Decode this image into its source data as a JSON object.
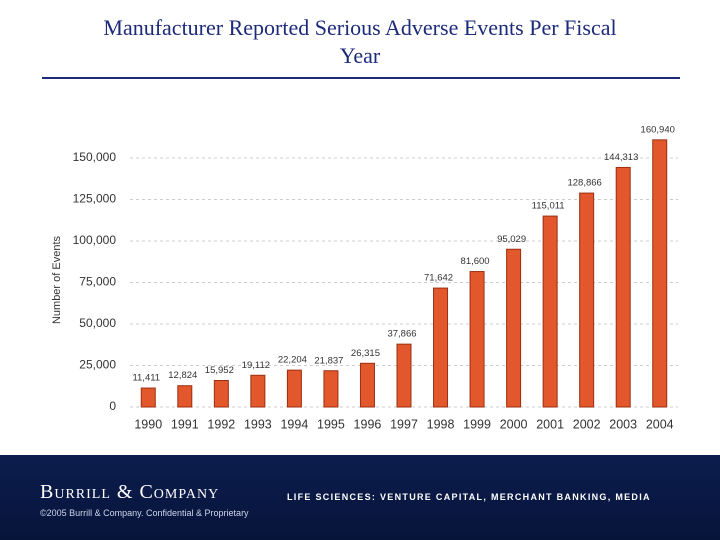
{
  "chart_data": {
    "type": "bar",
    "title": "Manufacturer Reported Serious Adverse Events Per Fiscal Year",
    "y_label": "Number of Events",
    "categories": [
      "1990",
      "1991",
      "1992",
      "1993",
      "1994",
      "1995",
      "1996",
      "1997",
      "1998",
      "1999",
      "2000",
      "2001",
      "2002",
      "2003",
      "2004"
    ],
    "values": [
      11411,
      12824,
      15952,
      19112,
      22204,
      21837,
      26315,
      37866,
      71642,
      81600,
      95029,
      115011,
      128866,
      144313,
      160940
    ],
    "value_labels": [
      "11,411",
      "12,824",
      "15,952",
      "19,112",
      "22,204",
      "21,837",
      "26,315",
      "37,866",
      "71,642",
      "81,600",
      "95,029",
      "115,011",
      "128,866",
      "144,313",
      "160,940"
    ],
    "color": "#e2572b",
    "ylim": [
      0,
      190000
    ],
    "yticks": [
      0,
      {
        "value": 25000,
        "label": "25,000"
      },
      {
        "value": 50000,
        "label": "50,000"
      },
      {
        "value": 75000,
        "label": "75,000"
      },
      {
        "value": 100000,
        "label": "100,000"
      },
      {
        "value": 125000,
        "label": "125,000"
      },
      {
        "value": 150000,
        "label": "150,000"
      }
    ],
    "grid": true
  },
  "footer": {
    "company": "Burrill & Company",
    "tagline": "LIFE SCIENCES: VENTURE CAPITAL, MERCHANT BANKING, MEDIA",
    "copyright": "©2005 Burrill & Company. Confidential & Proprietary"
  }
}
